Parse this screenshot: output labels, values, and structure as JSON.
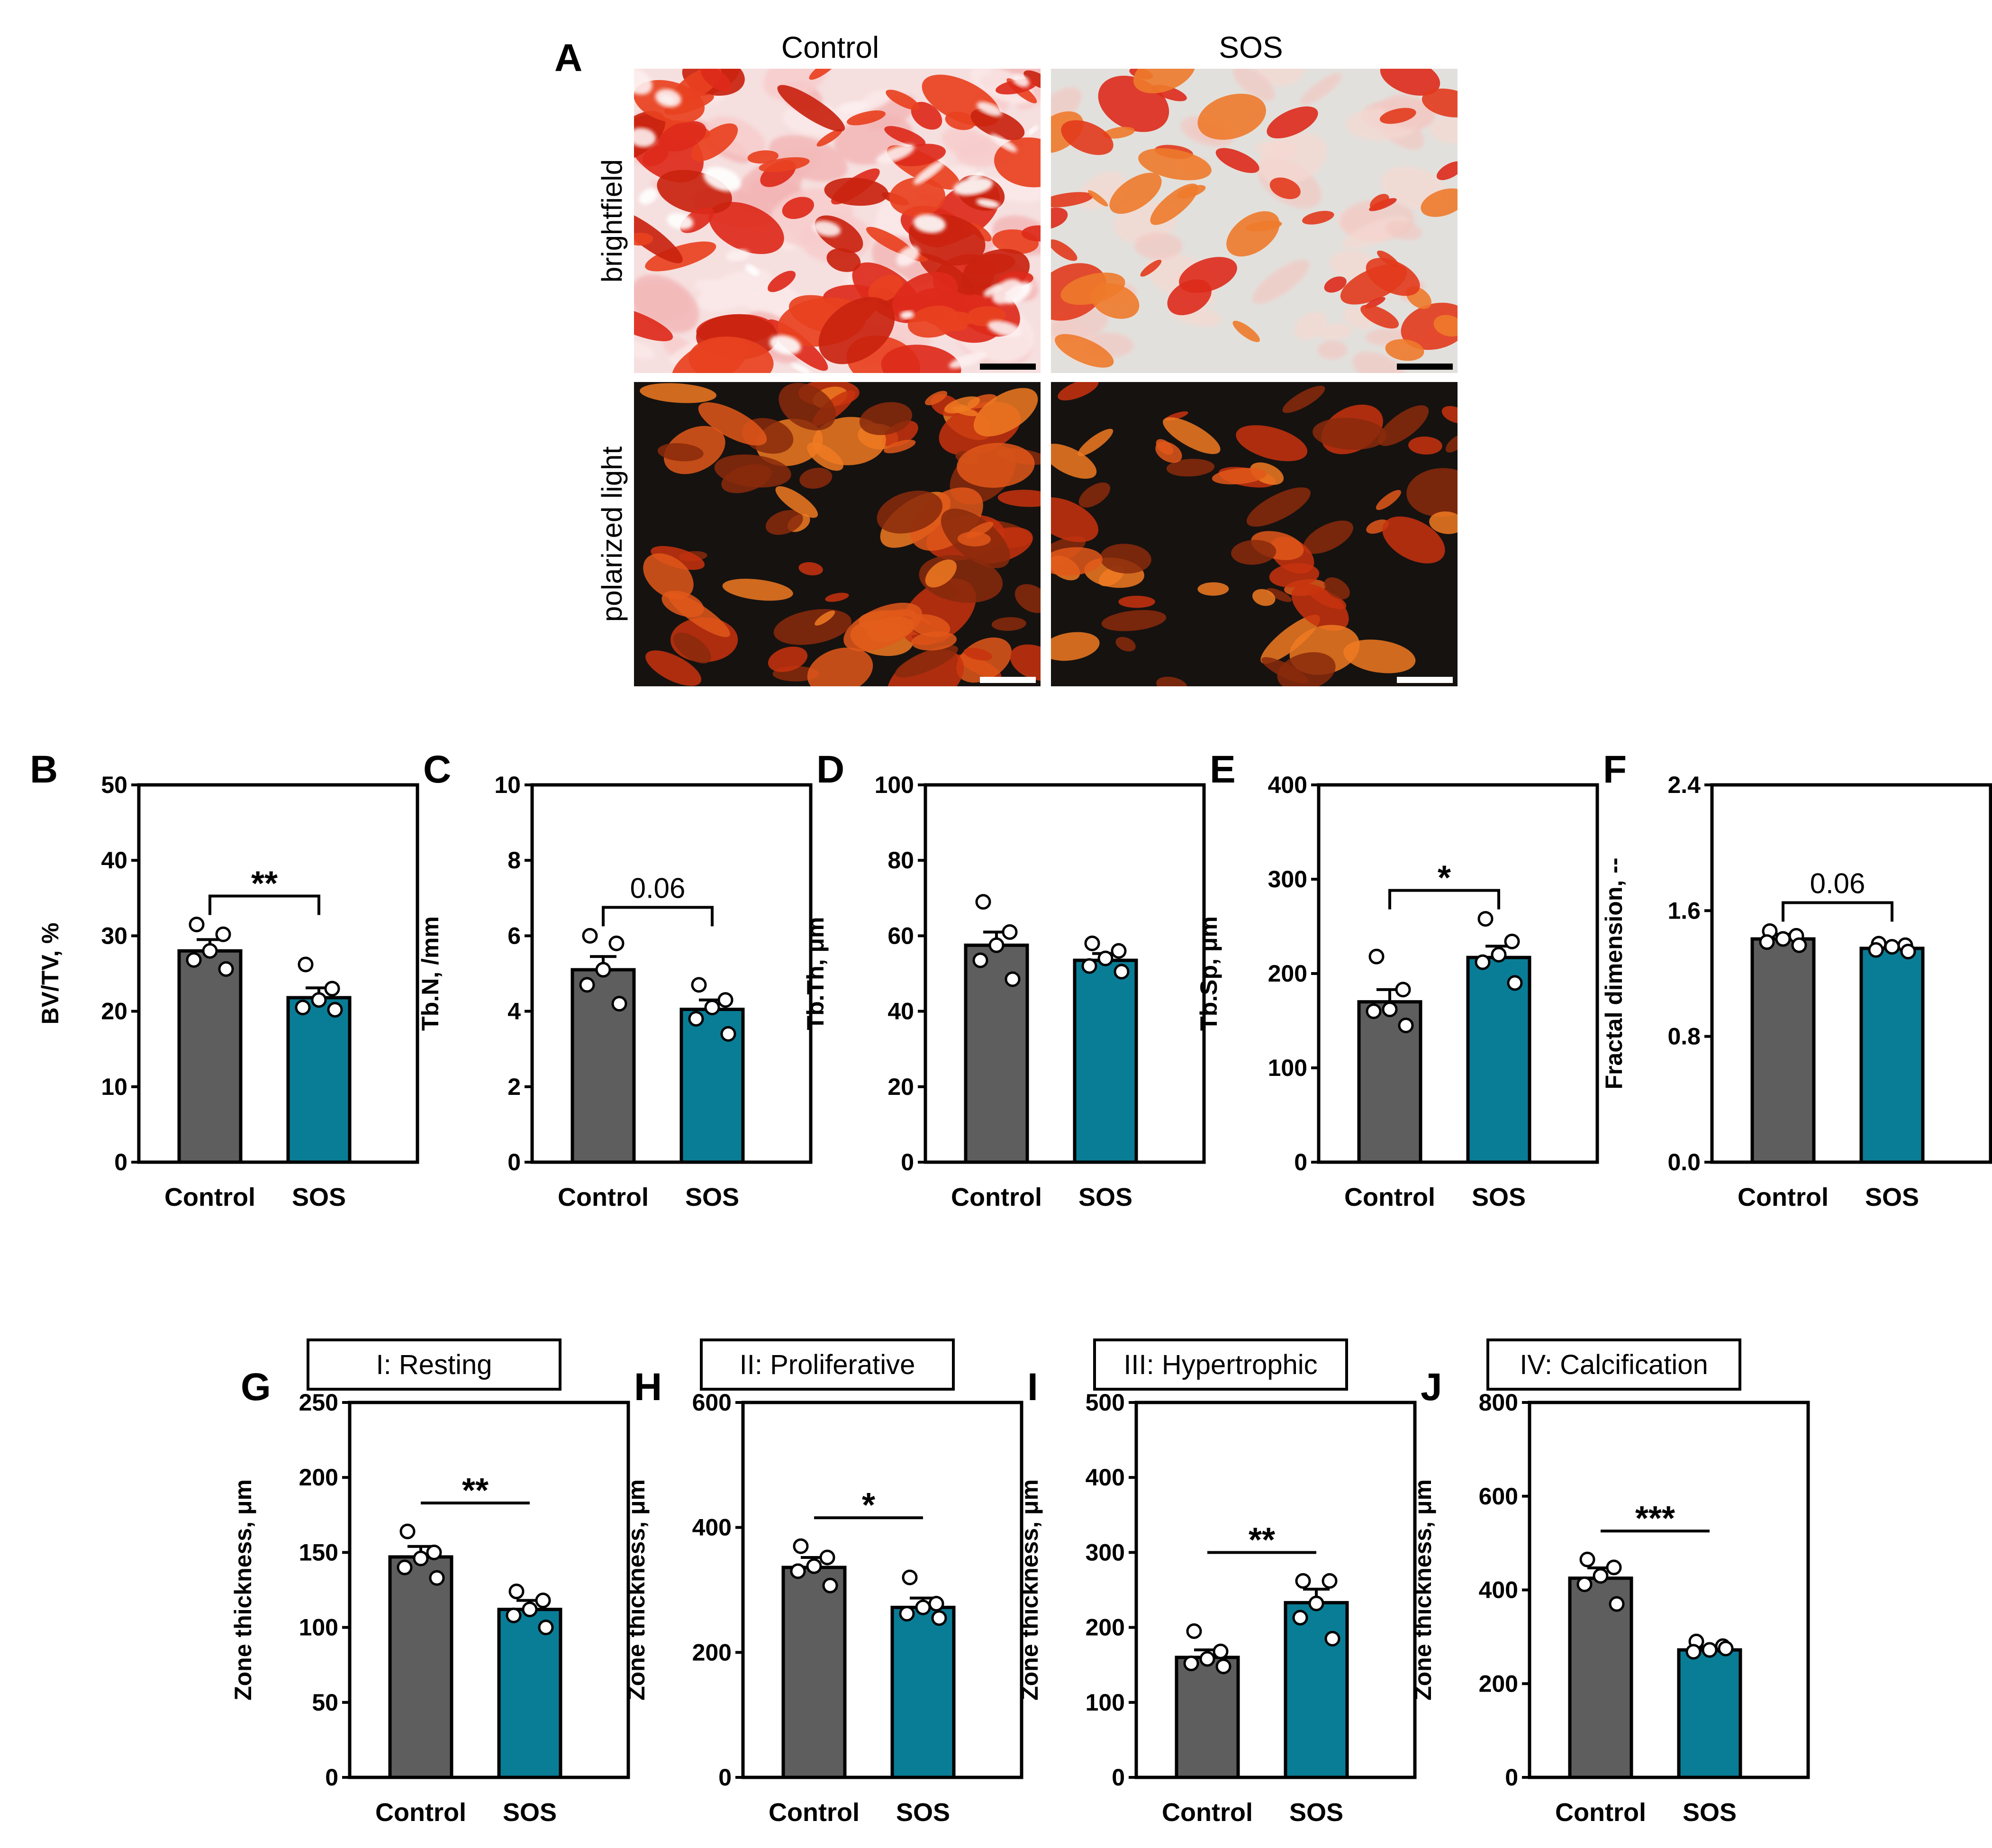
{
  "colors": {
    "control": "#5e5e5e",
    "sos": "#0a7d96",
    "bright_bg": "#f6dfdf",
    "bone_red": "#dd2a1b",
    "sos_bg": "#e2e0dc",
    "polar_bg": "#161210",
    "polar_fiber": "#e2581a",
    "scalebar_dark": "#000000",
    "scalebar_light": "#ffffff"
  },
  "panel_a": {
    "letter": "A",
    "columns": [
      "Control",
      "SOS"
    ],
    "rows": [
      "brightfield",
      "polarized light"
    ]
  },
  "chart_data": [
    {
      "id": "B",
      "type": "bar",
      "letter": "B",
      "categories": [
        "Control",
        "SOS"
      ],
      "values": [
        28,
        21.8
      ],
      "sem": [
        1.5,
        1.3
      ],
      "points": [
        [
          31.5,
          30.2,
          28,
          26.8,
          25.6
        ],
        [
          26.2,
          23,
          21.5,
          20.5,
          20.2
        ]
      ],
      "ylabel": "BV/TV, %",
      "ylim": [
        0,
        50
      ],
      "yticks": [
        "0",
        "10",
        "20",
        "30",
        "40",
        "50"
      ],
      "significance": "**",
      "zone_title": ""
    },
    {
      "id": "C",
      "type": "bar",
      "letter": "C",
      "categories": [
        "Control",
        "SOS"
      ],
      "values": [
        5.1,
        4.05
      ],
      "sem": [
        0.35,
        0.25
      ],
      "points": [
        [
          6.0,
          5.8,
          5.1,
          4.7,
          4.2
        ],
        [
          4.7,
          4.3,
          4.1,
          3.8,
          3.4
        ]
      ],
      "ylabel": "Tb.N, /mm",
      "ylim": [
        0,
        10
      ],
      "yticks": [
        "0",
        "2",
        "4",
        "6",
        "8",
        "10"
      ],
      "significance": "0.06",
      "zone_title": ""
    },
    {
      "id": "D",
      "type": "bar",
      "letter": "D",
      "categories": [
        "Control",
        "SOS"
      ],
      "values": [
        57.5,
        53.5
      ],
      "sem": [
        3.5,
        1.8
      ],
      "points": [
        [
          69,
          61,
          57.5,
          53.5,
          48.5
        ],
        [
          58,
          56,
          54,
          52,
          50.5
        ]
      ],
      "ylabel": "Tb.Th, μm",
      "ylim": [
        0,
        100
      ],
      "yticks": [
        "0",
        "20",
        "40",
        "60",
        "80",
        "100"
      ],
      "significance": "",
      "zone_title": ""
    },
    {
      "id": "E",
      "type": "bar",
      "letter": "E",
      "categories": [
        "Control",
        "SOS"
      ],
      "values": [
        170,
        217
      ],
      "sem": [
        13,
        12
      ],
      "points": [
        [
          218,
          183,
          162,
          160,
          145
        ],
        [
          258,
          234,
          220,
          212,
          190
        ]
      ],
      "ylabel": "Tb.Sp, μm",
      "ylim": [
        0,
        400
      ],
      "yticks": [
        "0",
        "100",
        "200",
        "300",
        "400"
      ],
      "significance": "*",
      "zone_title": ""
    },
    {
      "id": "F",
      "type": "bar",
      "letter": "F",
      "categories": [
        "Control",
        "SOS"
      ],
      "values": [
        1.42,
        1.36
      ],
      "sem": [
        0.03,
        0.02
      ],
      "points": [
        [
          1.47,
          1.44,
          1.42,
          1.4,
          1.38
        ],
        [
          1.39,
          1.38,
          1.37,
          1.35,
          1.34
        ]
      ],
      "ylabel": "Fractal dimension, --",
      "ylim": [
        0,
        2.4
      ],
      "yticks": [
        "0.0",
        "0.8",
        "1.6",
        "2.4"
      ],
      "significance": "0.06",
      "zone_title": ""
    },
    {
      "id": "G",
      "type": "bar",
      "letter": "G",
      "categories": [
        "Control",
        "SOS"
      ],
      "values": [
        147,
        112
      ],
      "sem": [
        7,
        6
      ],
      "points": [
        [
          164,
          150,
          146,
          140,
          133
        ],
        [
          124,
          118,
          112,
          108,
          100
        ]
      ],
      "ylabel": "Zone thickness, μm",
      "ylim": [
        0,
        250
      ],
      "yticks": [
        "0",
        "50",
        "100",
        "150",
        "200",
        "250"
      ],
      "significance": "**",
      "zone_title": "I: Resting"
    },
    {
      "id": "H",
      "type": "bar",
      "letter": "H",
      "categories": [
        "Control",
        "SOS"
      ],
      "values": [
        336,
        272
      ],
      "sem": [
        16,
        15
      ],
      "points": [
        [
          370,
          352,
          338,
          330,
          307
        ],
        [
          320,
          278,
          272,
          262,
          255
        ]
      ],
      "ylabel": "Zone thickness, μm",
      "ylim": [
        0,
        600
      ],
      "yticks": [
        "0",
        "200",
        "400",
        "600"
      ],
      "significance": "*",
      "zone_title": "II: Proliferative"
    },
    {
      "id": "I",
      "type": "bar",
      "letter": "I",
      "categories": [
        "Control",
        "SOS"
      ],
      "values": [
        160,
        233
      ],
      "sem": [
        10,
        18
      ],
      "points": [
        [
          195,
          168,
          158,
          152,
          148
        ],
        [
          262,
          262,
          232,
          213,
          185
        ]
      ],
      "ylabel": "Zone thickness, μm",
      "ylim": [
        0,
        500
      ],
      "yticks": [
        "0",
        "100",
        "200",
        "300",
        "400",
        "500"
      ],
      "significance": "**",
      "zone_title": "III: Hypertrophic"
    },
    {
      "id": "J",
      "type": "bar",
      "letter": "J",
      "categories": [
        "Control",
        "SOS"
      ],
      "values": [
        425,
        272
      ],
      "sem": [
        22,
        6
      ],
      "points": [
        [
          465,
          448,
          430,
          412,
          370
        ],
        [
          290,
          280,
          272,
          268,
          275
        ]
      ],
      "ylabel": "Zone thickness, μm",
      "ylim": [
        0,
        800
      ],
      "yticks": [
        "0",
        "200",
        "400",
        "600",
        "800"
      ],
      "significance": "***",
      "zone_title": "IV: Calcification"
    }
  ]
}
